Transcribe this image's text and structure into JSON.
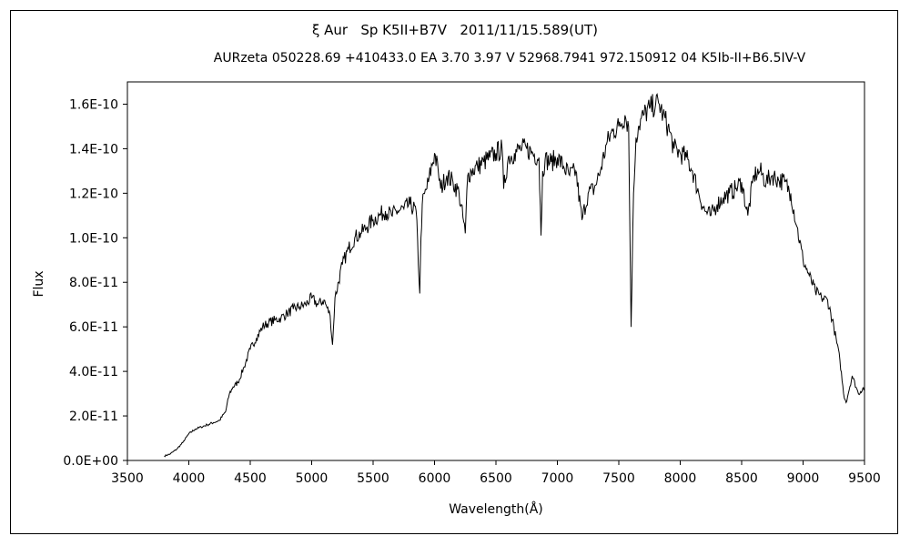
{
  "chart_data": {
    "type": "line",
    "title": "ξ Aur   Sp K5II+B7V   2011/11/15.589(UT)",
    "subtitle": "AURzeta 050228.69 +410433.0 EA 3.70 3.97 V 52968.7941 972.150912 04 K5Ib-II+B6.5IV-V",
    "xlabel": "Wavelength(Å)",
    "ylabel": "Flux",
    "xlim": [
      3500,
      9500
    ],
    "ylim": [
      0,
      1.7e-10
    ],
    "x_ticks": [
      3500,
      4000,
      4500,
      5000,
      5500,
      6000,
      6500,
      7000,
      7500,
      8000,
      8500,
      9000,
      9500
    ],
    "x_tick_labels": [
      "3500",
      "4000",
      "4500",
      "5000",
      "5500",
      "6000",
      "6500",
      "7000",
      "7500",
      "8000",
      "8500",
      "9000",
      "9500"
    ],
    "y_ticks": [
      0,
      2e-11,
      4e-11,
      6e-11,
      8e-11,
      1e-10,
      1.2e-10,
      1.4e-10,
      1.6e-10
    ],
    "y_tick_labels": [
      "0.0E+00",
      "2.0E-11",
      "4.0E-11",
      "6.0E-11",
      "8.0E-11",
      "1.0E-10",
      "1.2E-10",
      "1.4E-10",
      "1.6E-10"
    ],
    "grid": false,
    "series": [
      {
        "x": [
          3800,
          3850,
          3900,
          3950,
          4000,
          4050,
          4100,
          4150,
          4200,
          4250,
          4300,
          4330,
          4360,
          4400,
          4450,
          4500,
          4550,
          4600,
          4650,
          4700,
          4750,
          4800,
          4850,
          4900,
          4950,
          5000,
          5050,
          5100,
          5150,
          5170,
          5190,
          5250,
          5300,
          5350,
          5400,
          5450,
          5500,
          5550,
          5600,
          5650,
          5700,
          5750,
          5800,
          5850,
          5880,
          5890,
          5900,
          5950,
          6000,
          6030,
          6050,
          6100,
          6150,
          6200,
          6250,
          6270,
          6300,
          6350,
          6400,
          6450,
          6500,
          6550,
          6563,
          6600,
          6650,
          6700,
          6750,
          6800,
          6850,
          6867,
          6880,
          6900,
          6950,
          7000,
          7050,
          7100,
          7150,
          7200,
          7250,
          7300,
          7350,
          7400,
          7450,
          7500,
          7550,
          7580,
          7600,
          7620,
          7640,
          7660,
          7700,
          7750,
          7800,
          7830,
          7860,
          7900,
          7950,
          8000,
          8050,
          8100,
          8150,
          8200,
          8250,
          8300,
          8350,
          8400,
          8450,
          8500,
          8550,
          8600,
          8650,
          8700,
          8750,
          8800,
          8850,
          8900,
          8950,
          9000,
          9050,
          9100,
          9150,
          9200,
          9250,
          9300,
          9330,
          9350,
          9400,
          9450,
          9500
        ],
        "y": [
          2e-12,
          3e-12,
          5e-12,
          8e-12,
          1.2e-11,
          1.4e-11,
          1.5e-11,
          1.6e-11,
          1.7e-11,
          1.8e-11,
          2.2e-11,
          3e-11,
          3.3e-11,
          3.5e-11,
          4.2e-11,
          5e-11,
          5.5e-11,
          6e-11,
          6.2e-11,
          6.3e-11,
          6.4e-11,
          6.6e-11,
          6.8e-11,
          6.9e-11,
          7e-11,
          7.3e-11,
          7e-11,
          7.2e-11,
          6.5e-11,
          5.2e-11,
          7.3e-11,
          8.8e-11,
          9.5e-11,
          1e-10,
          1.02e-10,
          1.05e-10,
          1.08e-10,
          1.1e-10,
          1.12e-10,
          1.1e-10,
          1.12e-10,
          1.13e-10,
          1.15e-10,
          1.12e-10,
          7.5e-11,
          1e-10,
          1.15e-10,
          1.25e-10,
          1.38e-10,
          1.3e-10,
          1.22e-10,
          1.28e-10,
          1.25e-10,
          1.2e-10,
          1.02e-10,
          1.28e-10,
          1.3e-10,
          1.32e-10,
          1.34e-10,
          1.36e-10,
          1.38e-10,
          1.4e-10,
          1.22e-10,
          1.36e-10,
          1.38e-10,
          1.4e-10,
          1.4e-10,
          1.38e-10,
          1.36e-10,
          1.01e-10,
          1.3e-10,
          1.35e-10,
          1.34e-10,
          1.36e-10,
          1.32e-10,
          1.28e-10,
          1.3e-10,
          1.08e-10,
          1.2e-10,
          1.22e-10,
          1.3e-10,
          1.42e-10,
          1.48e-10,
          1.5e-10,
          1.55e-10,
          1.5e-10,
          6e-11,
          1.2e-10,
          1.45e-10,
          1.5e-10,
          1.55e-10,
          1.58e-10,
          1.6e-10,
          1.6e-10,
          1.55e-10,
          1.5e-10,
          1.4e-10,
          1.38e-10,
          1.36e-10,
          1.3e-10,
          1.2e-10,
          1.12e-10,
          1.1e-10,
          1.15e-10,
          1.18e-10,
          1.2e-10,
          1.22e-10,
          1.25e-10,
          1.1e-10,
          1.28e-10,
          1.3e-10,
          1.25e-10,
          1.28e-10,
          1.26e-10,
          1.25e-10,
          1.2e-10,
          1.05e-10,
          9e-11,
          8.3e-11,
          7.6e-11,
          7.3e-11,
          7.2e-11,
          6e-11,
          4.5e-11,
          3e-11,
          2.6e-11,
          3.8e-11,
          3e-11,
          3.3e-11
        ]
      }
    ]
  }
}
